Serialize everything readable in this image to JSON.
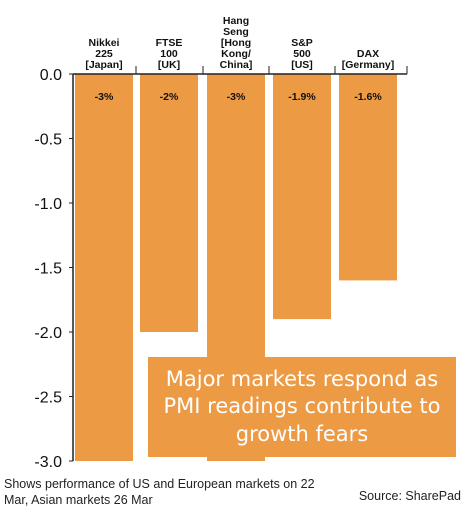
{
  "chart_data": {
    "type": "bar",
    "categories": [
      "Nikkei 225 [Japan]",
      "FTSE 100 [UK]",
      "Hang Seng [Hong Kong/ China]",
      "S&P 500 [US]",
      "DAX [Germany]"
    ],
    "category_lines": [
      [
        "Nikkei",
        "225",
        "[Japan]"
      ],
      [
        "FTSE",
        "100",
        "[UK]"
      ],
      [
        "Hang",
        "Seng",
        "[Hong",
        "Kong/",
        "China]"
      ],
      [
        "S&P",
        "500",
        "[US]"
      ],
      [
        "DAX",
        "[Germany]"
      ]
    ],
    "values": [
      -3.0,
      -2.0,
      -3.0,
      -1.9,
      -1.6
    ],
    "value_labels": [
      "-3%",
      "-2%",
      "-3%",
      "-1.9%",
      "-1.6%"
    ],
    "yticks": [
      "0.0",
      "-0.5",
      "-1.0",
      "-1.5",
      "-2.0",
      "-2.5",
      "-3.0"
    ],
    "ylim": [
      -3.0,
      0.0
    ],
    "bar_color": "#ec9a43",
    "grid": false
  },
  "callout_text": "Major markets respond as PMI readings contribute to growth fears",
  "footnote": "Shows performance of US and European markets on 22 Mar, Asian markets 26 Mar",
  "source": "Source: SharePad"
}
